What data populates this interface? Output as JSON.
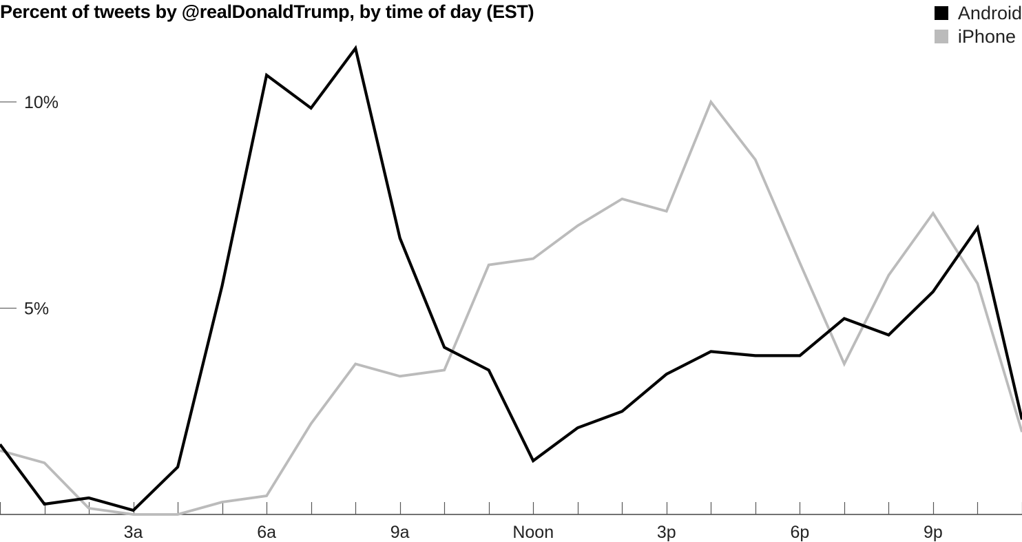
{
  "chart_data": {
    "type": "line",
    "title": "Percent of tweets by @realDonaldTrump, by time of day (EST)",
    "x": [
      0,
      1,
      2,
      3,
      4,
      5,
      6,
      7,
      8,
      9,
      10,
      11,
      12,
      13,
      14,
      15,
      16,
      17,
      18,
      19,
      20,
      21,
      22,
      23
    ],
    "xticks": [
      {
        "x": 3,
        "label": "3a"
      },
      {
        "x": 6,
        "label": "6a"
      },
      {
        "x": 9,
        "label": "9a"
      },
      {
        "x": 12,
        "label": "Noon"
      },
      {
        "x": 15,
        "label": "3p"
      },
      {
        "x": 18,
        "label": "6p"
      },
      {
        "x": 21,
        "label": "9p"
      }
    ],
    "yticks": [
      {
        "y": 5,
        "label": "5%"
      },
      {
        "y": 10,
        "label": "10%"
      }
    ],
    "xlim": [
      0,
      23
    ],
    "ylim": [
      0,
      11.6
    ],
    "series": [
      {
        "name": "Android",
        "color": "#000000",
        "values": [
          1.7,
          0.25,
          0.4,
          0.1,
          1.15,
          5.55,
          10.65,
          9.85,
          11.3,
          6.7,
          4.05,
          3.5,
          1.3,
          2.1,
          2.5,
          3.4,
          3.95,
          3.85,
          3.85,
          4.75,
          4.35,
          5.4,
          6.95,
          2.3
        ]
      },
      {
        "name": "iPhone",
        "color": "#bbbbbb",
        "values": [
          1.55,
          1.25,
          0.15,
          0.0,
          0.0,
          0.3,
          0.45,
          2.2,
          3.65,
          3.35,
          3.5,
          6.05,
          6.2,
          7.0,
          7.65,
          7.35,
          10.0,
          8.6,
          6.1,
          3.65,
          5.8,
          7.3,
          5.6,
          2.0
        ]
      }
    ]
  }
}
